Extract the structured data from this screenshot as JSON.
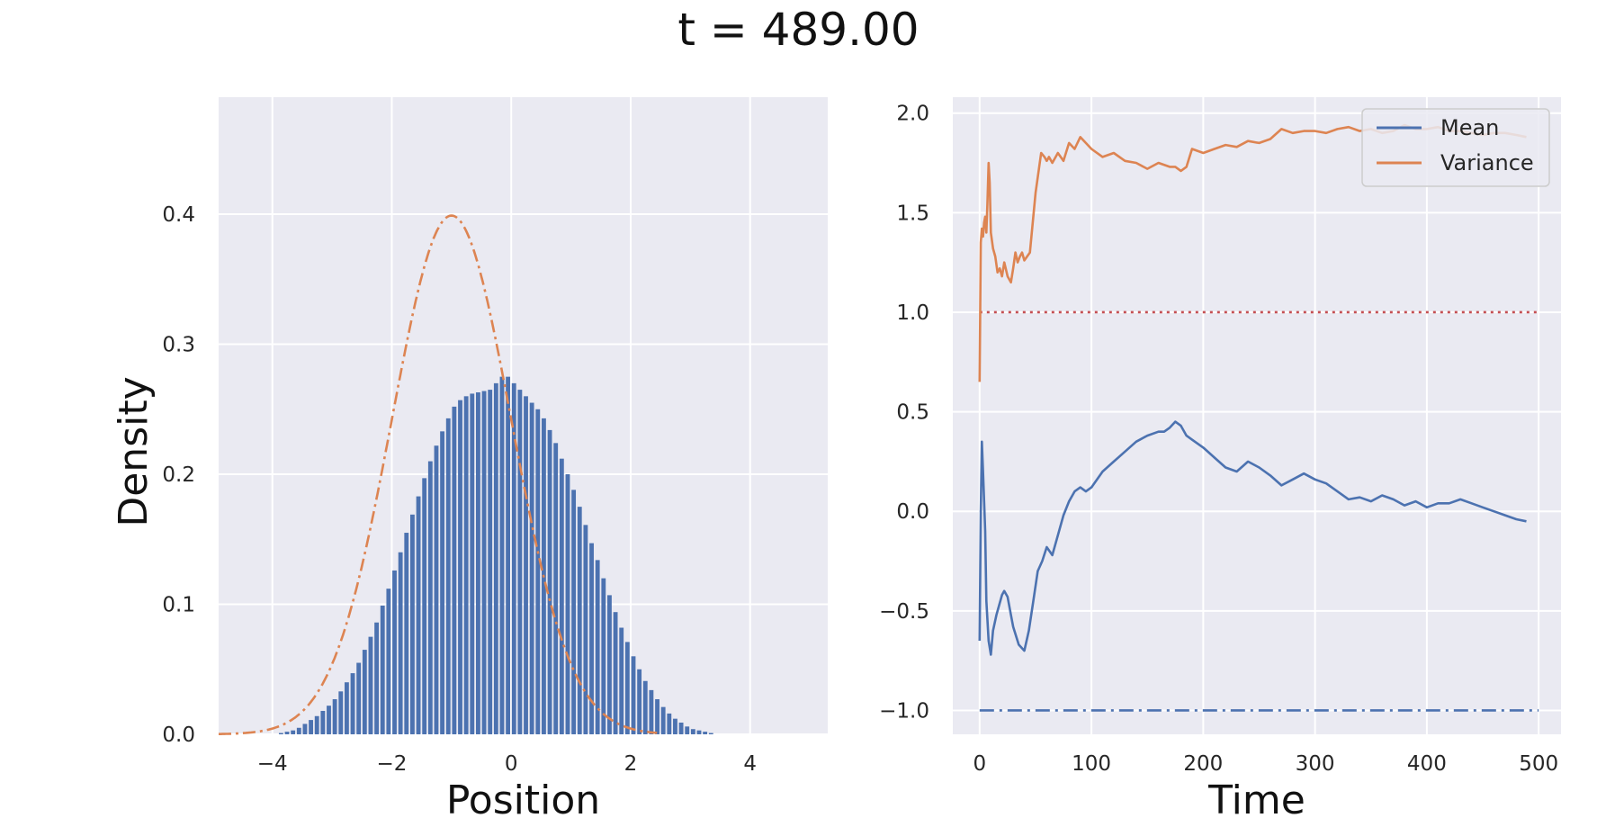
{
  "title": "t = 489.00",
  "colors": {
    "background": "#eaeaf2",
    "grid": "#ffffff",
    "blue": "#4c72b0",
    "orange": "#dd8452",
    "red": "#c44e52"
  },
  "chart_data": [
    {
      "type": "bar",
      "xlabel": "Position",
      "ylabel": "Density",
      "xlim": [
        -4.9,
        5.3
      ],
      "ylim": [
        0,
        0.49
      ],
      "xticks": [
        "−4",
        "−2",
        "0",
        "2",
        "4"
      ],
      "xtick_values": [
        -4,
        -2,
        0,
        2,
        4
      ],
      "yticks": [
        "0.0",
        "0.1",
        "0.2",
        "0.3",
        "0.4"
      ],
      "ytick_values": [
        0,
        0.1,
        0.2,
        0.3,
        0.4
      ],
      "grid": true,
      "bins": {
        "start": -3.9,
        "width": 0.1,
        "values": [
          0.001,
          0.002,
          0.003,
          0.005,
          0.008,
          0.011,
          0.014,
          0.018,
          0.022,
          0.027,
          0.033,
          0.04,
          0.047,
          0.055,
          0.065,
          0.075,
          0.086,
          0.099,
          0.112,
          0.126,
          0.14,
          0.155,
          0.169,
          0.183,
          0.197,
          0.21,
          0.222,
          0.233,
          0.243,
          0.252,
          0.257,
          0.26,
          0.262,
          0.263,
          0.264,
          0.265,
          0.27,
          0.275,
          0.275,
          0.27,
          0.265,
          0.26,
          0.255,
          0.25,
          0.243,
          0.234,
          0.224,
          0.212,
          0.2,
          0.188,
          0.175,
          0.161,
          0.147,
          0.134,
          0.12,
          0.107,
          0.094,
          0.082,
          0.071,
          0.06,
          0.05,
          0.041,
          0.034,
          0.027,
          0.021,
          0.016,
          0.012,
          0.009,
          0.006,
          0.004,
          0.003,
          0.002,
          0.001
        ]
      },
      "reference_curve": {
        "style": "dash-dot",
        "color": "#dd8452",
        "mean": -1.0,
        "std": 1.0
      }
    },
    {
      "type": "line",
      "xlabel": "Time",
      "xlim": [
        -24,
        520
      ],
      "ylim": [
        -1.12,
        2.08
      ],
      "xticks": [
        "0",
        "100",
        "200",
        "300",
        "400",
        "500"
      ],
      "xtick_values": [
        0,
        100,
        200,
        300,
        400,
        500
      ],
      "yticks": [
        "−1.0",
        "−0.5",
        "0.0",
        "0.5",
        "1.0",
        "1.5",
        "2.0"
      ],
      "ytick_values": [
        -1,
        -0.5,
        0,
        0.5,
        1,
        1.5,
        2
      ],
      "grid": true,
      "legend": "top-right",
      "series": [
        {
          "name": "Mean",
          "color": "#4c72b0",
          "x": [
            0,
            1,
            2,
            3,
            4,
            5,
            6,
            8,
            10,
            12,
            15,
            20,
            22,
            25,
            28,
            30,
            35,
            40,
            44,
            48,
            52,
            56,
            60,
            65,
            70,
            75,
            80,
            85,
            90,
            95,
            100,
            110,
            120,
            130,
            140,
            150,
            160,
            165,
            170,
            175,
            180,
            185,
            190,
            200,
            210,
            220,
            230,
            240,
            250,
            260,
            270,
            280,
            290,
            300,
            310,
            320,
            330,
            340,
            350,
            360,
            370,
            380,
            390,
            400,
            410,
            420,
            430,
            440,
            450,
            460,
            470,
            480,
            489
          ],
          "y": [
            -0.65,
            0.0,
            0.35,
            0.2,
            0.05,
            -0.1,
            -0.45,
            -0.65,
            -0.72,
            -0.6,
            -0.52,
            -0.42,
            -0.4,
            -0.43,
            -0.52,
            -0.58,
            -0.67,
            -0.7,
            -0.6,
            -0.45,
            -0.3,
            -0.25,
            -0.18,
            -0.22,
            -0.12,
            -0.02,
            0.05,
            0.1,
            0.12,
            0.1,
            0.12,
            0.2,
            0.25,
            0.3,
            0.35,
            0.38,
            0.4,
            0.4,
            0.42,
            0.45,
            0.43,
            0.38,
            0.36,
            0.32,
            0.27,
            0.22,
            0.2,
            0.25,
            0.22,
            0.18,
            0.13,
            0.16,
            0.19,
            0.16,
            0.14,
            0.1,
            0.06,
            0.07,
            0.05,
            0.08,
            0.06,
            0.03,
            0.05,
            0.02,
            0.04,
            0.04,
            0.06,
            0.04,
            0.02,
            0.0,
            -0.02,
            -0.04,
            -0.05
          ]
        },
        {
          "name": "Variance",
          "color": "#dd8452",
          "x": [
            0,
            1,
            2,
            3,
            4,
            5,
            6,
            7,
            8,
            9,
            10,
            12,
            14,
            16,
            18,
            20,
            22,
            25,
            28,
            30,
            32,
            34,
            36,
            38,
            40,
            45,
            50,
            55,
            58,
            60,
            62,
            65,
            70,
            75,
            80,
            85,
            90,
            95,
            100,
            110,
            120,
            130,
            140,
            150,
            160,
            170,
            175,
            180,
            185,
            190,
            200,
            210,
            220,
            230,
            240,
            250,
            260,
            270,
            280,
            290,
            300,
            310,
            320,
            330,
            340,
            350,
            360,
            370,
            380,
            390,
            400,
            410,
            420,
            430,
            440,
            450,
            460,
            470,
            480,
            489
          ],
          "y": [
            0.65,
            1.35,
            1.42,
            1.38,
            1.45,
            1.48,
            1.4,
            1.55,
            1.75,
            1.65,
            1.4,
            1.32,
            1.28,
            1.2,
            1.22,
            1.18,
            1.25,
            1.18,
            1.15,
            1.22,
            1.3,
            1.25,
            1.28,
            1.3,
            1.26,
            1.3,
            1.6,
            1.8,
            1.78,
            1.76,
            1.78,
            1.75,
            1.8,
            1.76,
            1.85,
            1.82,
            1.88,
            1.85,
            1.82,
            1.78,
            1.8,
            1.76,
            1.75,
            1.72,
            1.75,
            1.73,
            1.73,
            1.71,
            1.73,
            1.82,
            1.8,
            1.82,
            1.84,
            1.83,
            1.86,
            1.85,
            1.87,
            1.92,
            1.9,
            1.91,
            1.91,
            1.9,
            1.92,
            1.93,
            1.91,
            1.92,
            1.9,
            1.91,
            1.94,
            1.92,
            1.92,
            1.93,
            1.91,
            1.91,
            1.9,
            1.89,
            1.9,
            1.9,
            1.89,
            1.88
          ]
        }
      ],
      "reference_lines": [
        {
          "y": 1.0,
          "style": "dotted",
          "color": "#c44e52",
          "x": [
            0,
            500
          ]
        },
        {
          "y": -1.0,
          "style": "dash-dot",
          "color": "#4c72b0",
          "x": [
            0,
            500
          ]
        }
      ]
    }
  ]
}
